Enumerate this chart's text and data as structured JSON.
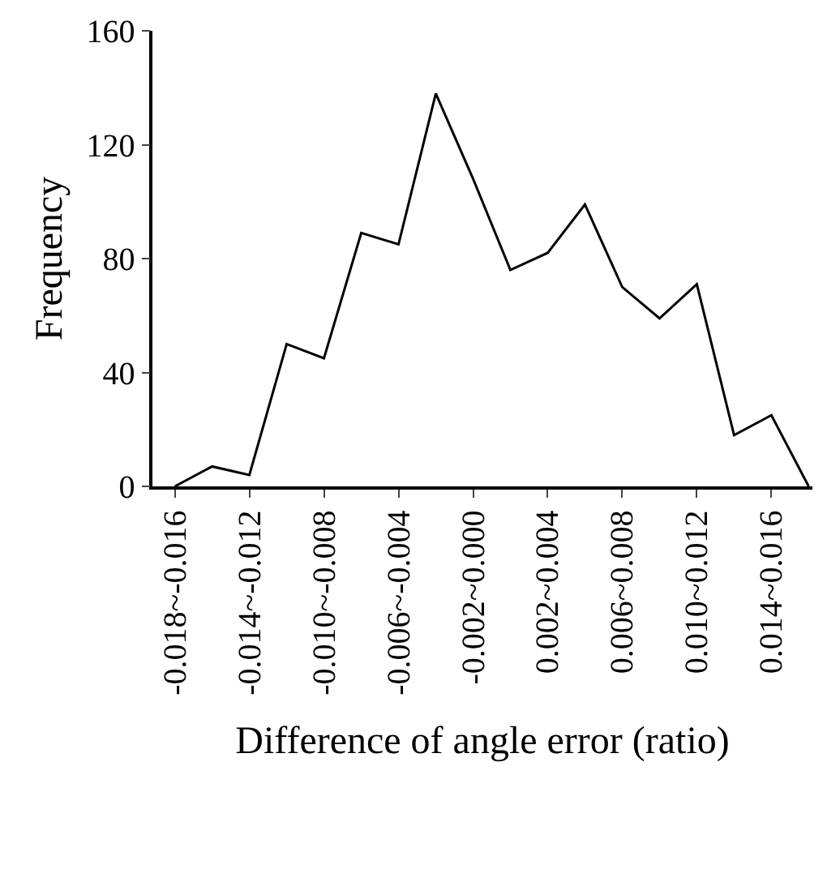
{
  "chart_data": {
    "type": "line",
    "xlabel": "Difference of angle error (ratio)",
    "ylabel": "Frequency",
    "categories": [
      "-0.018~-0.016",
      null,
      "-0.014~-0.012",
      null,
      "-0.010~-0.008",
      null,
      "-0.006~-0.004",
      null,
      "-0.002~0.000",
      null,
      "0.002~0.004",
      null,
      "0.006~0.008",
      null,
      "0.010~0.012",
      null,
      "0.014~0.016",
      null
    ],
    "series": [
      {
        "color": "#000000",
        "values": [
          0,
          7,
          4,
          50,
          45,
          89,
          85,
          138,
          108,
          76,
          82,
          99,
          70,
          59,
          71,
          18,
          25,
          0
        ]
      }
    ],
    "ylim": [
      0,
      160
    ],
    "yticks": [
      0,
      40,
      80,
      120,
      160
    ],
    "legend": false,
    "marker": "none",
    "line_style": "solid"
  }
}
